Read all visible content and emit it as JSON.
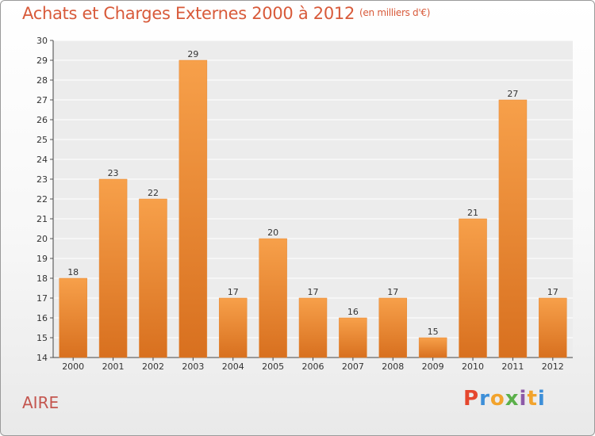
{
  "title": "Achats et Charges Externes 2000 à 2012",
  "subtitle": "(en milliers d'€)",
  "commune": "AIRE",
  "brand": {
    "letters": [
      "P",
      "r",
      "o",
      "x",
      "i",
      "t",
      "i"
    ],
    "colors": [
      "#e5472e",
      "#3d8fd8",
      "#f2a32c",
      "#5bb04a",
      "#8d5aa8",
      "#f2a32c",
      "#3d8fd8"
    ]
  },
  "colors": {
    "bar": "#f08a2e",
    "title": "#d85a3a",
    "commune": "#c4564f"
  },
  "chart_data": {
    "type": "bar",
    "categories": [
      "2000",
      "2001",
      "2002",
      "2003",
      "2004",
      "2005",
      "2006",
      "2007",
      "2008",
      "2009",
      "2010",
      "2011",
      "2012"
    ],
    "values": [
      18,
      23,
      22,
      29,
      17,
      20,
      17,
      16,
      17,
      15,
      21,
      27,
      17
    ],
    "ylim": [
      14,
      30
    ],
    "yticks": [
      14,
      15,
      16,
      17,
      18,
      19,
      20,
      21,
      22,
      23,
      24,
      25,
      26,
      27,
      28,
      29,
      30
    ],
    "grid": true,
    "data_labels": true
  }
}
